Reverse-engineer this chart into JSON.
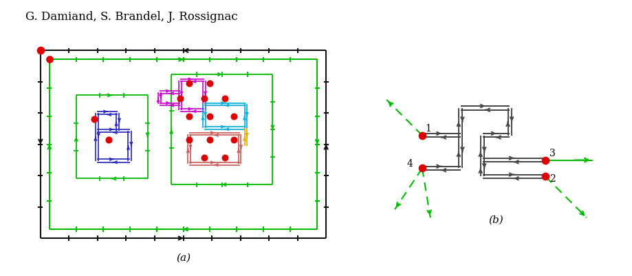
{
  "title": "G. Damiand, S. Brandel, J. Rossignac",
  "title_fontsize": 12,
  "background": "#ffffff",
  "label_a": "(a)",
  "label_b": "(b)",
  "colors": {
    "black": "#111111",
    "green": "#00bb00",
    "blue": "#2222bb",
    "magenta": "#cc00cc",
    "cyan": "#00aadd",
    "yellow": "#ddaa00",
    "salmon": "#cc5555",
    "red": "#dd0000",
    "darkgray": "#444444"
  }
}
